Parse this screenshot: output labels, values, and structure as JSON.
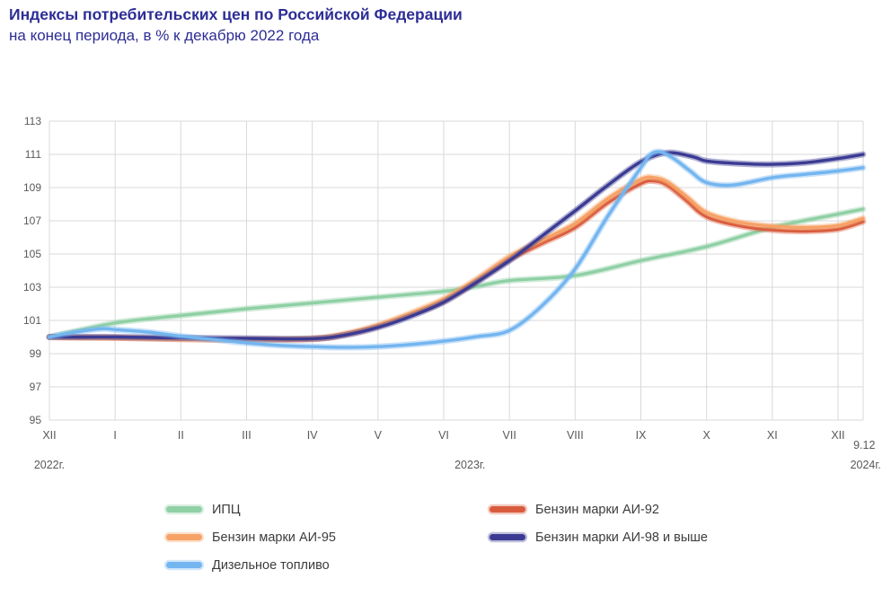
{
  "title": "Индексы потребительских цен по Российской Федерации",
  "subtitle": "на конец периода, в % к декабрю 2022 года",
  "chart_data": {
    "type": "line",
    "title": "Индексы потребительских цен по Российской Федерации",
    "subtitle": "на конец периода, в % к декабрю 2022 года",
    "grid": true,
    "grid_color": "#d9d9d9",
    "axis_text_color": "#595959",
    "y_axis": {
      "min": 95,
      "max": 113,
      "step": 2,
      "tick_labels": [
        "95",
        "97",
        "99",
        "101",
        "103",
        "105",
        "107",
        "109",
        "111",
        "113"
      ]
    },
    "x_axis": {
      "tick_labels": [
        "XII",
        "I",
        "II",
        "III",
        "IV",
        "V",
        "VI",
        "VII",
        "VIII",
        "IX",
        "X",
        "XI",
        "XII"
      ],
      "sub_labels": [
        {
          "text": "2022г.",
          "m": 0,
          "dy": 0
        },
        {
          "text": "2023г.",
          "m": 6.4,
          "dy": 0
        },
        {
          "text": "9.12",
          "m": 12.4,
          "dy": -22
        },
        {
          "text": "2024г.",
          "m": 12.42,
          "dy": 0
        }
      ]
    },
    "x_end_month": 12.38,
    "series": [
      {
        "name": "ИПЦ",
        "color": "#8fd0a4",
        "points": [
          [
            0,
            100
          ],
          [
            1,
            100.85
          ],
          [
            2,
            101.3
          ],
          [
            3,
            101.7
          ],
          [
            4,
            102.05
          ],
          [
            5,
            102.4
          ],
          [
            6,
            102.75
          ],
          [
            6.5,
            103.05
          ],
          [
            7,
            103.4
          ],
          [
            8,
            103.7
          ],
          [
            9,
            104.6
          ],
          [
            10,
            105.45
          ],
          [
            11,
            106.6
          ],
          [
            12,
            107.4
          ],
          [
            12.38,
            107.7
          ]
        ]
      },
      {
        "name": "Бензин марки АИ-92",
        "color": "#d95b3d",
        "points": [
          [
            0,
            100
          ],
          [
            0.5,
            99.97
          ],
          [
            1,
            99.95
          ],
          [
            2,
            99.88
          ],
          [
            3,
            99.84
          ],
          [
            4,
            99.88
          ],
          [
            4.5,
            100.15
          ],
          [
            5,
            100.65
          ],
          [
            5.5,
            101.35
          ],
          [
            6,
            102.15
          ],
          [
            6.5,
            103.35
          ],
          [
            7,
            104.65
          ],
          [
            7.5,
            105.65
          ],
          [
            8,
            106.6
          ],
          [
            8.5,
            108.1
          ],
          [
            9,
            109.25
          ],
          [
            9.2,
            109.4
          ],
          [
            9.4,
            109.15
          ],
          [
            9.7,
            108.2
          ],
          [
            10,
            107.25
          ],
          [
            10.5,
            106.7
          ],
          [
            11,
            106.45
          ],
          [
            11.5,
            106.38
          ],
          [
            12,
            106.5
          ],
          [
            12.38,
            106.95
          ]
        ]
      },
      {
        "name": "Бензин марки АИ-95",
        "color": "#f6a266",
        "points": [
          [
            0,
            100
          ],
          [
            0.5,
            99.98
          ],
          [
            1,
            99.96
          ],
          [
            2,
            99.9
          ],
          [
            3,
            99.86
          ],
          [
            4,
            99.92
          ],
          [
            4.5,
            100.2
          ],
          [
            5,
            100.72
          ],
          [
            5.5,
            101.45
          ],
          [
            6,
            102.3
          ],
          [
            6.5,
            103.5
          ],
          [
            7,
            104.85
          ],
          [
            7.5,
            105.85
          ],
          [
            8,
            106.85
          ],
          [
            8.5,
            108.35
          ],
          [
            9,
            109.5
          ],
          [
            9.2,
            109.6
          ],
          [
            9.4,
            109.35
          ],
          [
            9.7,
            108.45
          ],
          [
            10,
            107.5
          ],
          [
            10.5,
            106.92
          ],
          [
            11,
            106.68
          ],
          [
            11.5,
            106.6
          ],
          [
            12,
            106.72
          ],
          [
            12.38,
            107.15
          ]
        ]
      },
      {
        "name": "Бензин марки АИ-98 и выше",
        "color": "#3b3b94",
        "points": [
          [
            0,
            100
          ],
          [
            0.5,
            100
          ],
          [
            1,
            100
          ],
          [
            2,
            99.95
          ],
          [
            3,
            99.92
          ],
          [
            4,
            99.9
          ],
          [
            4.5,
            100.12
          ],
          [
            5,
            100.58
          ],
          [
            5.5,
            101.25
          ],
          [
            6,
            102.1
          ],
          [
            6.5,
            103.3
          ],
          [
            7,
            104.6
          ],
          [
            7.5,
            106.1
          ],
          [
            8,
            107.6
          ],
          [
            8.5,
            109.15
          ],
          [
            9,
            110.55
          ],
          [
            9.4,
            111.1
          ],
          [
            9.8,
            110.85
          ],
          [
            10,
            110.6
          ],
          [
            10.5,
            110.45
          ],
          [
            11,
            110.4
          ],
          [
            11.5,
            110.5
          ],
          [
            12,
            110.75
          ],
          [
            12.38,
            111.0
          ]
        ]
      },
      {
        "name": "Дизельное топливо",
        "color": "#73b5ef",
        "points": [
          [
            0,
            100
          ],
          [
            0.4,
            100.3
          ],
          [
            0.8,
            100.5
          ],
          [
            1,
            100.45
          ],
          [
            1.5,
            100.3
          ],
          [
            2,
            100.05
          ],
          [
            2.5,
            99.85
          ],
          [
            3,
            99.65
          ],
          [
            3.5,
            99.5
          ],
          [
            4,
            99.42
          ],
          [
            4.5,
            99.38
          ],
          [
            5,
            99.42
          ],
          [
            5.5,
            99.55
          ],
          [
            6,
            99.75
          ],
          [
            6.5,
            100.02
          ],
          [
            7,
            100.4
          ],
          [
            7.5,
            101.9
          ],
          [
            8,
            104.1
          ],
          [
            8.5,
            107.3
          ],
          [
            9,
            110.2
          ],
          [
            9.15,
            111.0
          ],
          [
            9.3,
            111.15
          ],
          [
            9.5,
            110.75
          ],
          [
            9.75,
            110.0
          ],
          [
            10,
            109.3
          ],
          [
            10.4,
            109.15
          ],
          [
            11,
            109.6
          ],
          [
            11.5,
            109.8
          ],
          [
            12,
            110.0
          ],
          [
            12.38,
            110.2
          ]
        ]
      }
    ]
  },
  "legend": {
    "items": [
      {
        "label": "ИПЦ",
        "series": 0
      },
      {
        "label": "Бензин марки АИ-92",
        "series": 1
      },
      {
        "label": "Бензин марки АИ-95",
        "series": 2
      },
      {
        "label": "Бензин марки АИ-98 и выше",
        "series": 3
      },
      {
        "label": "Дизельное топливо",
        "series": 4
      }
    ]
  }
}
